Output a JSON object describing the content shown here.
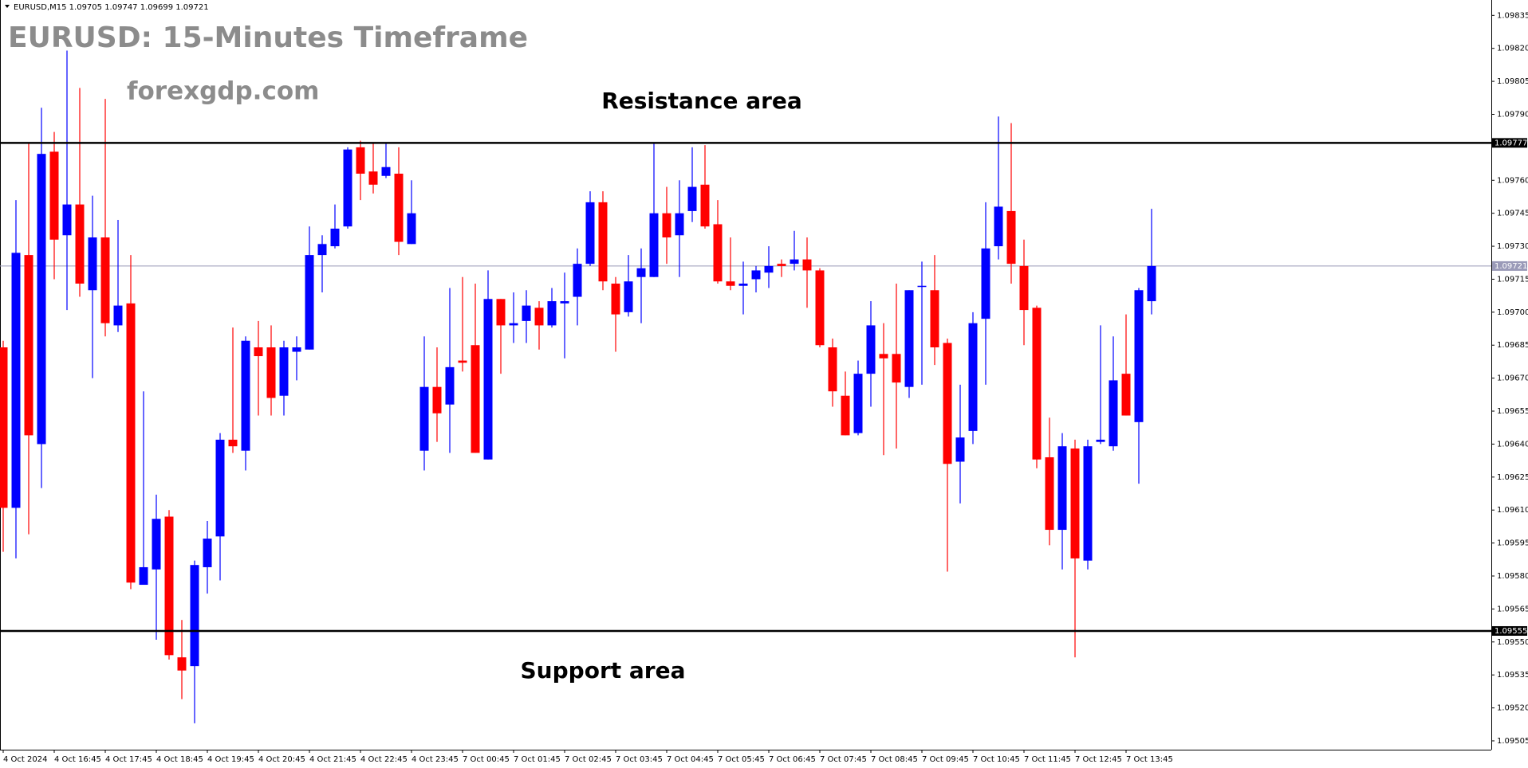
{
  "chart_data": {
    "type": "candlestick",
    "header": "EURUSD,M15  1.09705 1.09747 1.09699 1.09721",
    "title": "EURUSD: 15-Minutes Timeframe",
    "subtitle": "forexgdp.com",
    "resistance": {
      "label": "Resistance area",
      "value": 1.09777
    },
    "support": {
      "label": "Support area",
      "value": 1.09555
    },
    "last_price": 1.09721,
    "up_color": "#0000ff",
    "down_color": "#ff0000",
    "ylim": [
      1.09501,
      1.09842
    ],
    "yticks": [
      1.09505,
      {
        "value": 1.0952,
        "label": "1.09520"
      },
      1.09535,
      {
        "value": 1.0955,
        "label": "1.09550"
      },
      1.09565,
      {
        "value": 1.0958,
        "label": "1.09580"
      },
      1.09595,
      {
        "value": 1.0961,
        "label": "1.09610"
      },
      1.09625,
      {
        "value": 1.0964,
        "label": "1.09640"
      },
      1.09655,
      {
        "value": 1.0967,
        "label": "1.09670"
      },
      1.09685,
      {
        "value": 1.097,
        "label": "1.09700"
      },
      1.09715,
      {
        "value": 1.0973,
        "label": "1.09730"
      },
      1.09745,
      {
        "value": 1.0976,
        "label": "1.09760"
      },
      {
        "value": 1.0979,
        "label": "1.09790"
      },
      1.09805,
      {
        "value": 1.0982,
        "label": "1.09820"
      },
      1.09835
    ],
    "categories": [
      "4 Oct 2024",
      null,
      null,
      null,
      "4 Oct 16:45",
      null,
      null,
      null,
      "4 Oct 17:45",
      null,
      null,
      null,
      "4 Oct 18:45",
      null,
      null,
      null,
      "4 Oct 19:45",
      null,
      null,
      null,
      "4 Oct 20:45",
      null,
      null,
      null,
      "4 Oct 21:45",
      null,
      null,
      null,
      "4 Oct 22:45",
      null,
      null,
      null,
      "4 Oct 23:45",
      null,
      null,
      null,
      "7 Oct 00:45",
      null,
      null,
      null,
      "7 Oct 01:45",
      null,
      null,
      null,
      "7 Oct 02:45",
      null,
      null,
      null,
      "7 Oct 03:45",
      null,
      null,
      null,
      "7 Oct 04:45",
      null,
      null,
      null,
      "7 Oct 05:45",
      null,
      null,
      null,
      "7 Oct 06:45",
      null,
      null,
      null,
      "7 Oct 07:45",
      null,
      null,
      null,
      "7 Oct 08:45",
      null,
      null,
      null,
      "7 Oct 09:45",
      null,
      null,
      null,
      "7 Oct 10:45",
      null,
      null,
      null,
      "7 Oct 11:45",
      null,
      null,
      null,
      "7 Oct 12:45",
      null,
      null,
      null,
      "7 Oct 13:45",
      null,
      null
    ],
    "open": [
      1.09684,
      1.09611,
      1.09726,
      1.0964,
      1.09773,
      1.09735,
      1.09749,
      1.0971,
      1.09734,
      1.09694,
      1.09704,
      1.09576,
      1.09583,
      1.09607,
      1.09543,
      1.09539,
      1.09584,
      1.09598,
      1.09642,
      1.09637,
      1.09684,
      1.09684,
      1.09662,
      1.09682,
      1.09683,
      1.09726,
      1.0973,
      1.09739,
      1.09775,
      1.09764,
      1.09762,
      1.09763,
      1.09731,
      1.09637,
      1.09666,
      1.09658,
      1.09678,
      1.09685,
      1.09633,
      1.09706,
      1.09694,
      1.09696,
      1.09702,
      1.09694,
      1.09704,
      1.09707,
      1.09722,
      1.0975,
      1.09713,
      1.097,
      1.09716,
      1.09716,
      1.09745,
      1.09735,
      1.09746,
      1.09758,
      1.0974,
      1.09714,
      1.09712,
      1.09715,
      1.09718,
      1.09722,
      1.09722,
      1.09724,
      1.09719,
      1.09684,
      1.09662,
      1.09645,
      1.09672,
      1.09681,
      1.09681,
      1.09666,
      1.09712,
      1.0971,
      1.09686,
      1.09632,
      1.09646,
      1.09697,
      1.0973,
      1.09746,
      1.09721,
      1.09702,
      1.09634,
      1.09601,
      1.09638,
      1.09587,
      1.09641,
      1.09639,
      1.09672,
      1.0965,
      1.09705
    ],
    "high": [
      1.09687,
      1.09751,
      1.09777,
      1.09793,
      1.09782,
      1.09819,
      1.09802,
      1.09753,
      1.09797,
      1.09742,
      1.09726,
      1.09664,
      1.09617,
      1.0961,
      1.0956,
      1.09587,
      1.09605,
      1.09645,
      1.09693,
      1.09689,
      1.09696,
      1.09694,
      1.09687,
      1.09689,
      1.09739,
      1.09735,
      1.09749,
      1.09775,
      1.09778,
      1.09777,
      1.09777,
      1.09775,
      1.0976,
      1.09689,
      1.09684,
      1.09711,
      1.09716,
      1.09713,
      1.09719,
      1.09706,
      1.09709,
      1.0971,
      1.09705,
      1.09711,
      1.09718,
      1.09729,
      1.09755,
      1.09755,
      1.09716,
      1.09726,
      1.09729,
      1.09777,
      1.09757,
      1.0976,
      1.09775,
      1.09776,
      1.09751,
      1.09734,
      1.09723,
      1.09721,
      1.0973,
      1.09724,
      1.09737,
      1.09734,
      1.0972,
      1.09688,
      1.09673,
      1.09678,
      1.09705,
      1.09695,
      1.09713,
      1.0971,
      1.09723,
      1.09726,
      1.09688,
      1.09667,
      1.097,
      1.0975,
      1.09789,
      1.09786,
      1.09733,
      1.09703,
      1.09652,
      1.09645,
      1.09642,
      1.09642,
      1.09694,
      1.09689,
      1.09699,
      1.09711,
      1.09747
    ],
    "low": [
      1.09591,
      1.09588,
      1.09599,
      1.0962,
      1.09715,
      1.09701,
      1.09707,
      1.0967,
      1.09689,
      1.09691,
      1.09574,
      1.09576,
      1.09551,
      1.09542,
      1.09524,
      1.09513,
      1.09572,
      1.09578,
      1.09636,
      1.09628,
      1.09653,
      1.09653,
      1.09653,
      1.09669,
      1.09683,
      1.09709,
      1.09729,
      1.09738,
      1.09751,
      1.09754,
      1.09761,
      1.09726,
      1.09731,
      1.09628,
      1.09641,
      1.09636,
      1.09673,
      1.09636,
      1.09633,
      1.09672,
      1.09686,
      1.09686,
      1.09683,
      1.09693,
      1.09679,
      1.09694,
      1.09721,
      1.0971,
      1.09682,
      1.09698,
      1.09695,
      1.09716,
      1.09722,
      1.09716,
      1.09741,
      1.09738,
      1.09713,
      1.0971,
      1.09699,
      1.09709,
      1.09711,
      1.09716,
      1.09719,
      1.09702,
      1.09684,
      1.09657,
      1.09644,
      1.09644,
      1.09657,
      1.09635,
      1.09638,
      1.09661,
      1.09667,
      1.09676,
      1.09582,
      1.09613,
      1.0964,
      1.09667,
      1.09724,
      1.09713,
      1.09685,
      1.09629,
      1.09594,
      1.09583,
      1.09543,
      1.09583,
      1.0964,
      1.09637,
      1.09653,
      1.09622,
      1.09699
    ],
    "close": [
      1.09611,
      1.09727,
      1.09644,
      1.09772,
      1.09733,
      1.09749,
      1.09713,
      1.09734,
      1.09695,
      1.09703,
      1.09577,
      1.09584,
      1.09606,
      1.09544,
      1.09537,
      1.09585,
      1.09597,
      1.09642,
      1.09639,
      1.09687,
      1.0968,
      1.09661,
      1.09684,
      1.09684,
      1.09726,
      1.09731,
      1.09738,
      1.09774,
      1.09763,
      1.09758,
      1.09766,
      1.09732,
      1.09745,
      1.09666,
      1.09654,
      1.09675,
      1.09677,
      1.09636,
      1.09706,
      1.09694,
      1.09695,
      1.09703,
      1.09694,
      1.09705,
      1.09705,
      1.09722,
      1.0975,
      1.09714,
      1.09699,
      1.09714,
      1.0972,
      1.09745,
      1.09734,
      1.09745,
      1.09757,
      1.09739,
      1.09714,
      1.09712,
      1.09713,
      1.09719,
      1.09721,
      1.09721,
      1.09724,
      1.09719,
      1.09685,
      1.09664,
      1.09644,
      1.09672,
      1.09694,
      1.09679,
      1.09668,
      1.0971,
      1.09712,
      1.09684,
      1.09631,
      1.09643,
      1.09695,
      1.09729,
      1.09748,
      1.09722,
      1.09701,
      1.09633,
      1.09601,
      1.09639,
      1.09588,
      1.09639,
      1.09642,
      1.09669,
      1.09653,
      1.0971,
      1.09721
    ]
  }
}
